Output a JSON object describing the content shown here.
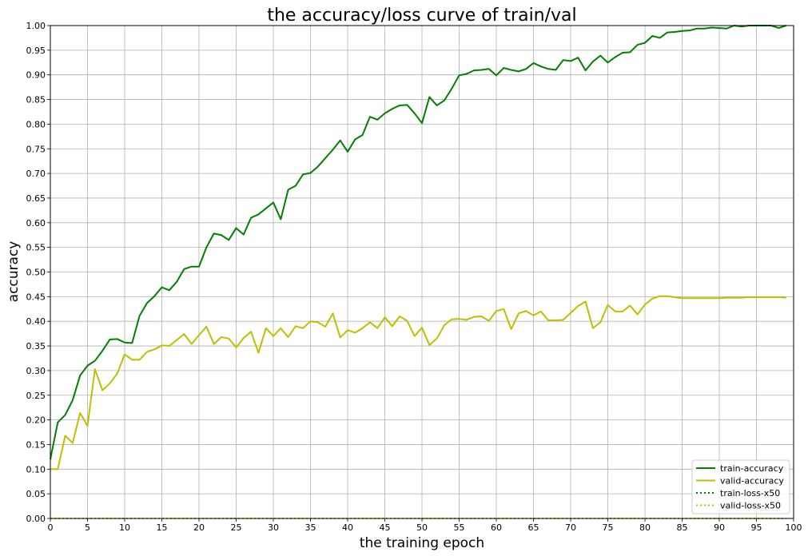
{
  "chart_data": {
    "type": "line",
    "title": "the accuracy/loss curve of train/val",
    "xlabel": "the training epoch",
    "ylabel": "accuracy",
    "xlim": [
      0,
      100
    ],
    "ylim": [
      0,
      1.0
    ],
    "xticks": [
      0,
      5,
      10,
      15,
      20,
      25,
      30,
      35,
      40,
      45,
      50,
      55,
      60,
      65,
      70,
      75,
      80,
      85,
      90,
      95,
      100
    ],
    "xtick_labels": [
      "0",
      "5",
      "10",
      "15",
      "20",
      "25",
      "30",
      "35",
      "40",
      "45",
      "50",
      "55",
      "60",
      "65",
      "70",
      "75",
      "80",
      "85",
      "90",
      "95",
      "100"
    ],
    "yticks": [
      0,
      0.05,
      0.1,
      0.15,
      0.2,
      0.25,
      0.3,
      0.35,
      0.4,
      0.45,
      0.5,
      0.55,
      0.6,
      0.65,
      0.7,
      0.75,
      0.8,
      0.85,
      0.9,
      0.95,
      1.0
    ],
    "ytick_labels": [
      "0.00",
      "0.05",
      "0.10",
      "0.15",
      "0.20",
      "0.25",
      "0.30",
      "0.35",
      "0.40",
      "0.45",
      "0.50",
      "0.55",
      "0.60",
      "0.65",
      "0.70",
      "0.75",
      "0.80",
      "0.85",
      "0.90",
      "0.95",
      "1.00"
    ],
    "grid": true,
    "legend_position": "bottom-right",
    "series": [
      {
        "name": "train-accuracy",
        "color": "#008000",
        "style": "solid",
        "x": [
          0,
          1,
          2,
          3,
          4,
          5,
          6,
          7,
          8,
          9,
          10,
          11,
          12,
          13,
          14,
          15,
          16,
          17,
          18,
          19,
          20,
          21,
          22,
          23,
          24,
          25,
          26,
          27,
          28,
          29,
          30,
          31,
          32,
          33,
          34,
          35,
          36,
          37,
          38,
          39,
          40,
          41,
          42,
          43,
          44,
          45,
          46,
          47,
          48,
          49,
          50,
          51,
          52,
          53,
          54,
          55,
          56,
          57,
          58,
          59,
          60,
          61,
          62,
          63,
          64,
          65,
          66,
          67,
          68,
          69,
          70,
          71,
          72,
          73,
          74,
          75,
          76,
          77,
          78,
          79,
          80,
          81,
          82,
          83,
          84,
          85,
          86,
          87,
          88,
          89,
          90,
          91,
          92,
          93,
          94,
          95,
          96,
          97,
          98,
          99
        ],
        "values": [
          0.12,
          0.195,
          0.21,
          0.24,
          0.29,
          0.31,
          0.32,
          0.34,
          0.363,
          0.364,
          0.357,
          0.356,
          0.411,
          0.437,
          0.451,
          0.469,
          0.463,
          0.48,
          0.506,
          0.511,
          0.511,
          0.55,
          0.578,
          0.575,
          0.565,
          0.589,
          0.576,
          0.61,
          0.617,
          0.629,
          0.641,
          0.607,
          0.667,
          0.675,
          0.698,
          0.701,
          0.714,
          0.731,
          0.748,
          0.767,
          0.744,
          0.769,
          0.778,
          0.815,
          0.809,
          0.822,
          0.831,
          0.838,
          0.839,
          0.822,
          0.802,
          0.855,
          0.838,
          0.848,
          0.872,
          0.899,
          0.902,
          0.909,
          0.91,
          0.912,
          0.899,
          0.914,
          0.91,
          0.907,
          0.912,
          0.924,
          0.917,
          0.912,
          0.91,
          0.93,
          0.928,
          0.935,
          0.909,
          0.927,
          0.939,
          0.925,
          0.936,
          0.945,
          0.946,
          0.961,
          0.965,
          0.979,
          0.975,
          0.986,
          0.987,
          0.989,
          0.99,
          0.994,
          0.994,
          0.996,
          0.995,
          0.994,
          1.0,
          0.998,
          1.0,
          1.0,
          1.0,
          1.0,
          0.995,
          1.0
        ]
      },
      {
        "name": "valid-accuracy",
        "color": "#bfbf00",
        "style": "solid",
        "x": [
          0,
          1,
          2,
          3,
          4,
          5,
          6,
          7,
          8,
          9,
          10,
          11,
          12,
          13,
          14,
          15,
          16,
          17,
          18,
          19,
          20,
          21,
          22,
          23,
          24,
          25,
          26,
          27,
          28,
          29,
          30,
          31,
          32,
          33,
          34,
          35,
          36,
          37,
          38,
          39,
          40,
          41,
          42,
          43,
          44,
          45,
          46,
          47,
          48,
          49,
          50,
          51,
          52,
          53,
          54,
          55,
          56,
          57,
          58,
          59,
          60,
          61,
          62,
          63,
          64,
          65,
          66,
          67,
          68,
          69,
          70,
          71,
          72,
          73,
          74,
          75,
          76,
          77,
          78,
          79,
          80,
          81,
          82,
          83,
          84,
          85,
          86,
          87,
          88,
          89,
          90,
          91,
          92,
          93,
          94,
          95,
          96,
          97,
          98,
          99
        ],
        "values": [
          0.1,
          0.1,
          0.168,
          0.153,
          0.214,
          0.188,
          0.303,
          0.26,
          0.274,
          0.294,
          0.333,
          0.322,
          0.322,
          0.338,
          0.343,
          0.351,
          0.35,
          0.362,
          0.374,
          0.354,
          0.372,
          0.389,
          0.354,
          0.368,
          0.365,
          0.347,
          0.366,
          0.379,
          0.336,
          0.386,
          0.37,
          0.386,
          0.368,
          0.39,
          0.386,
          0.4,
          0.398,
          0.389,
          0.416,
          0.367,
          0.382,
          0.377,
          0.386,
          0.398,
          0.386,
          0.408,
          0.39,
          0.41,
          0.401,
          0.37,
          0.387,
          0.352,
          0.365,
          0.392,
          0.404,
          0.405,
          0.403,
          0.409,
          0.41,
          0.401,
          0.421,
          0.425,
          0.384,
          0.416,
          0.421,
          0.412,
          0.42,
          0.402,
          0.402,
          0.403,
          0.417,
          0.431,
          0.44,
          0.386,
          0.398,
          0.433,
          0.42,
          0.42,
          0.432,
          0.414,
          0.434,
          0.446,
          0.451,
          0.451,
          0.449,
          0.447,
          0.447,
          0.447,
          0.447,
          0.447,
          0.447,
          0.448,
          0.448,
          0.448,
          0.449,
          0.449,
          0.449,
          0.449,
          0.449,
          0.448
        ]
      },
      {
        "name": "train-loss-x50",
        "color": "#008000",
        "style": "dotted",
        "x": [
          0,
          99
        ],
        "values": [
          0,
          0
        ]
      },
      {
        "name": "valid-loss-x50",
        "color": "#bfbf00",
        "style": "dotted",
        "x": [
          0,
          99
        ],
        "values": [
          0,
          0
        ]
      }
    ]
  }
}
